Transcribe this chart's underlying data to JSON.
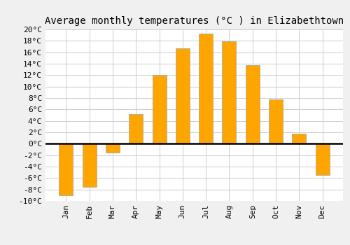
{
  "title": "Average monthly temperatures (°C ) in Elizabethtown",
  "months": [
    "Jan",
    "Feb",
    "Mar",
    "Apr",
    "May",
    "Jun",
    "Jul",
    "Aug",
    "Sep",
    "Oct",
    "Nov",
    "Dec"
  ],
  "values": [
    -9,
    -7.5,
    -1.5,
    5.2,
    12.0,
    16.7,
    19.3,
    17.9,
    13.8,
    7.8,
    1.7,
    -5.5
  ],
  "bar_color": "#FFA500",
  "bar_edge_color": "#aaaaaa",
  "ylim": [
    -10,
    20
  ],
  "yticks": [
    -10,
    -8,
    -6,
    -4,
    -2,
    0,
    2,
    4,
    6,
    8,
    10,
    12,
    14,
    16,
    18,
    20
  ],
  "background_color": "#f0f0f0",
  "plot_bg_color": "#ffffff",
  "grid_color": "#cccccc",
  "zero_line_color": "#000000",
  "title_fontsize": 10,
  "tick_fontsize": 8
}
